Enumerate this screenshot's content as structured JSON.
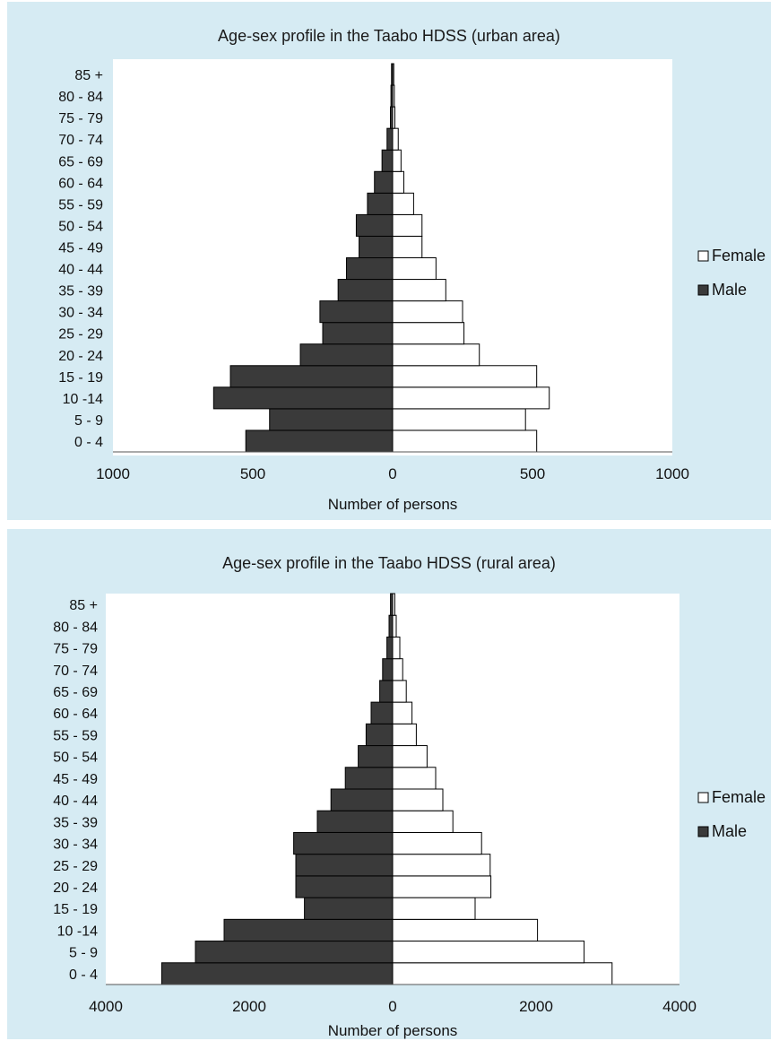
{
  "chart_data": [
    {
      "type": "bar",
      "orientation": "horizontal-pyramid",
      "title": "Age-sex profile in the Taabo HDSS (urban area)",
      "xlabel": "Number of persons",
      "ylabel": "",
      "categories": [
        "0 - 4",
        "5 - 9",
        "10 -14",
        "15 - 19",
        "20 - 24",
        "25 - 29",
        "30 - 34",
        "35 - 39",
        "40 - 44",
        "45 - 49",
        "50 - 54",
        "55 - 59",
        "60 - 64",
        "65 - 69",
        "70 - 74",
        "75 - 79",
        "80 - 84",
        "85 +"
      ],
      "series": [
        {
          "name": "Male",
          "color": "#3a3a3a",
          "values": [
            525,
            440,
            640,
            580,
            330,
            250,
            260,
            195,
            165,
            120,
            130,
            90,
            65,
            38,
            20,
            8,
            6,
            4
          ]
        },
        {
          "name": "Female",
          "color": "#ffffff",
          "values": [
            515,
            475,
            560,
            515,
            310,
            255,
            250,
            190,
            155,
            105,
            105,
            75,
            40,
            30,
            20,
            8,
            6,
            4
          ]
        }
      ],
      "xlim": [
        -1000,
        1000
      ],
      "ticks": [
        {
          "value": -1000,
          "label": "1000"
        },
        {
          "value": -500,
          "label": "500"
        },
        {
          "value": 0,
          "label": "0"
        },
        {
          "value": 500,
          "label": "500"
        },
        {
          "value": 1000,
          "label": "1000"
        }
      ],
      "legend": "right",
      "grid": false
    },
    {
      "type": "bar",
      "orientation": "horizontal-pyramid",
      "title": "Age-sex profile in the Taabo HDSS (rural area)",
      "xlabel": "Number of persons",
      "ylabel": "",
      "categories": [
        "0 - 4",
        "5 - 9",
        "10 -14",
        "15 - 19",
        "20 - 24",
        "25 - 29",
        "30 - 34",
        "35 - 39",
        "40 - 44",
        "45 - 49",
        "50 - 54",
        "55 - 59",
        "60 - 64",
        "65 - 69",
        "70 - 74",
        "75 - 79",
        "80 - 84",
        "85 +"
      ],
      "series": [
        {
          "name": "Male",
          "color": "#3a3a3a",
          "values": [
            3220,
            2750,
            2350,
            1230,
            1350,
            1350,
            1380,
            1050,
            860,
            660,
            480,
            370,
            300,
            180,
            140,
            80,
            50,
            30
          ]
        },
        {
          "name": "Female",
          "color": "#ffffff",
          "values": [
            3060,
            2670,
            2020,
            1150,
            1370,
            1360,
            1240,
            840,
            700,
            600,
            480,
            330,
            270,
            190,
            140,
            100,
            50,
            30
          ]
        }
      ],
      "xlim": [
        -4000,
        4000
      ],
      "ticks": [
        {
          "value": -4000,
          "label": "4000"
        },
        {
          "value": -2000,
          "label": "2000"
        },
        {
          "value": 0,
          "label": "0"
        },
        {
          "value": 2000,
          "label": "2000"
        },
        {
          "value": 4000,
          "label": "4000"
        }
      ],
      "legend": "right",
      "grid": false
    }
  ]
}
